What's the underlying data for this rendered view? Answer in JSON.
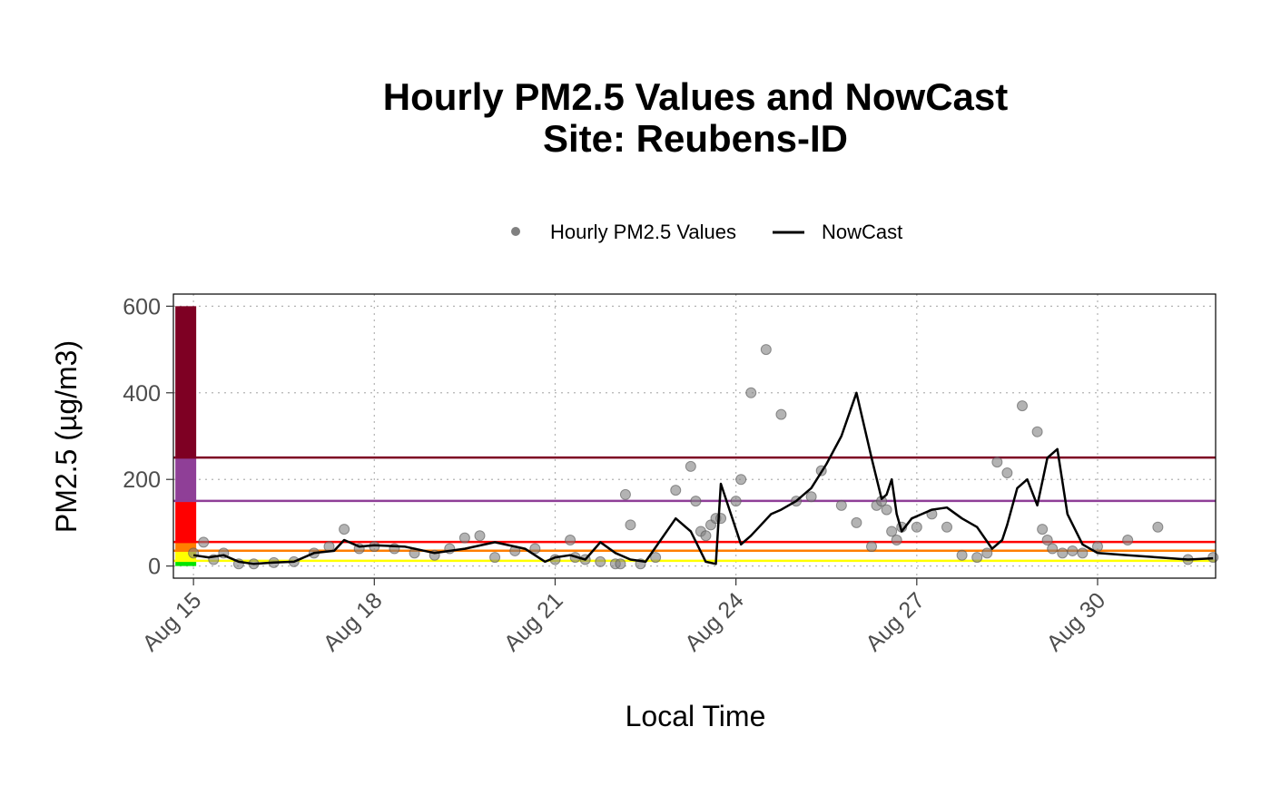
{
  "chart_data": {
    "type": "scatter",
    "title": "Hourly PM2.5 Values and NowCast",
    "subtitle": "Site: Reubens-ID",
    "xlabel": "Local Time",
    "ylabel": "PM2.5 (µg/m3)",
    "x_type": "date",
    "year": 2020,
    "xlim": [
      "2020-08-14T16:00",
      "2020-08-31T23:00"
    ],
    "ylim": [
      -28,
      628
    ],
    "x_tick_labels": [
      "Aug 15",
      "Aug 18",
      "Aug 21",
      "Aug 24",
      "Aug 27",
      "Aug 30"
    ],
    "x_tick_dates": [
      "2020-08-15",
      "2020-08-18",
      "2020-08-21",
      "2020-08-24",
      "2020-08-27",
      "2020-08-30"
    ],
    "y_ticks": [
      0,
      200,
      400,
      600
    ],
    "y_tick_labels": [
      "0",
      "200",
      "400",
      "600"
    ],
    "grid": true,
    "grid_style": "dotted",
    "legend_position": "top",
    "legend": [
      {
        "label": "Hourly PM2.5 Values",
        "marker": "point",
        "color": "#808080"
      },
      {
        "label": "NowCast",
        "marker": "line",
        "color": "#000000"
      }
    ],
    "aqi_category_colors": [
      "#00e400",
      "#ffff00",
      "#ff7e00",
      "#ff0000",
      "#8f3f97",
      "#7e0023"
    ],
    "aqi_bar_breaks": [
      0,
      12,
      35.5,
      55.5,
      150.5,
      250.5,
      600
    ],
    "aqi_threshold_lines": [
      {
        "value": 12,
        "color": "#ffff00"
      },
      {
        "value": 35.5,
        "color": "#ff7e00"
      },
      {
        "value": 55.5,
        "color": "#ff0000"
      },
      {
        "value": 150.5,
        "color": "#8f3f97"
      },
      {
        "value": 250.5,
        "color": "#7e0023"
      }
    ],
    "series": [
      {
        "name": "Hourly PM2.5 Values",
        "kind": "points",
        "color": "#808080",
        "x": [
          "2020-08-15T00:00",
          "2020-08-15T04:00",
          "2020-08-15T08:00",
          "2020-08-15T12:00",
          "2020-08-15T18:00",
          "2020-08-16T00:00",
          "2020-08-16T08:00",
          "2020-08-16T16:00",
          "2020-08-17T00:00",
          "2020-08-17T06:00",
          "2020-08-17T12:00",
          "2020-08-17T18:00",
          "2020-08-18T00:00",
          "2020-08-18T08:00",
          "2020-08-18T16:00",
          "2020-08-19T00:00",
          "2020-08-19T06:00",
          "2020-08-19T12:00",
          "2020-08-19T18:00",
          "2020-08-20T00:00",
          "2020-08-20T08:00",
          "2020-08-20T16:00",
          "2020-08-21T00:00",
          "2020-08-21T06:00",
          "2020-08-21T08:00",
          "2020-08-21T12:00",
          "2020-08-21T18:00",
          "2020-08-22T00:00",
          "2020-08-22T02:00",
          "2020-08-22T04:00",
          "2020-08-22T06:00",
          "2020-08-22T10:00",
          "2020-08-22T16:00",
          "2020-08-23T00:00",
          "2020-08-23T06:00",
          "2020-08-23T08:00",
          "2020-08-23T10:00",
          "2020-08-23T12:00",
          "2020-08-23T14:00",
          "2020-08-23T16:00",
          "2020-08-23T18:00",
          "2020-08-24T00:00",
          "2020-08-24T02:00",
          "2020-08-24T06:00",
          "2020-08-24T12:00",
          "2020-08-24T18:00",
          "2020-08-25T00:00",
          "2020-08-25T06:00",
          "2020-08-25T10:00",
          "2020-08-25T18:00",
          "2020-08-26T00:00",
          "2020-08-26T06:00",
          "2020-08-26T08:00",
          "2020-08-26T10:00",
          "2020-08-26T12:00",
          "2020-08-26T14:00",
          "2020-08-26T16:00",
          "2020-08-26T18:00",
          "2020-08-27T00:00",
          "2020-08-27T06:00",
          "2020-08-27T12:00",
          "2020-08-27T18:00",
          "2020-08-28T00:00",
          "2020-08-28T04:00",
          "2020-08-28T08:00",
          "2020-08-28T12:00",
          "2020-08-28T18:00",
          "2020-08-29T00:00",
          "2020-08-29T02:00",
          "2020-08-29T04:00",
          "2020-08-29T06:00",
          "2020-08-29T10:00",
          "2020-08-29T14:00",
          "2020-08-29T18:00",
          "2020-08-30T00:00",
          "2020-08-30T12:00",
          "2020-08-31T00:00",
          "2020-08-31T12:00",
          "2020-08-31T22:00"
        ],
        "y": [
          30,
          55,
          15,
          30,
          5,
          5,
          8,
          10,
          30,
          45,
          85,
          40,
          45,
          40,
          30,
          25,
          40,
          65,
          70,
          20,
          35,
          40,
          15,
          60,
          20,
          15,
          10,
          5,
          5,
          165,
          95,
          5,
          20,
          175,
          230,
          150,
          80,
          70,
          95,
          110,
          110,
          150,
          200,
          400,
          500,
          350,
          150,
          160,
          220,
          140,
          100,
          45,
          140,
          150,
          130,
          80,
          60,
          90,
          90,
          120,
          90,
          25,
          20,
          30,
          240,
          215,
          370,
          310,
          85,
          60,
          40,
          30,
          35,
          30,
          45,
          60,
          90,
          15,
          20
        ]
      },
      {
        "name": "NowCast",
        "kind": "line",
        "color": "#000000",
        "x": [
          "2020-08-15T00:00",
          "2020-08-15T06:00",
          "2020-08-15T12:00",
          "2020-08-15T18:00",
          "2020-08-16T00:00",
          "2020-08-16T08:00",
          "2020-08-16T16:00",
          "2020-08-17T00:00",
          "2020-08-17T08:00",
          "2020-08-17T12:00",
          "2020-08-17T18:00",
          "2020-08-18T00:00",
          "2020-08-18T12:00",
          "2020-08-19T00:00",
          "2020-08-19T12:00",
          "2020-08-20T00:00",
          "2020-08-20T12:00",
          "2020-08-20T20:00",
          "2020-08-21T00:00",
          "2020-08-21T06:00",
          "2020-08-21T12:00",
          "2020-08-21T18:00",
          "2020-08-22T00:00",
          "2020-08-22T06:00",
          "2020-08-22T12:00",
          "2020-08-23T00:00",
          "2020-08-23T06:00",
          "2020-08-23T12:00",
          "2020-08-23T16:00",
          "2020-08-23T18:00",
          "2020-08-23T22:00",
          "2020-08-24T02:00",
          "2020-08-24T06:00",
          "2020-08-24T10:00",
          "2020-08-24T14:00",
          "2020-08-24T18:00",
          "2020-08-25T00:00",
          "2020-08-25T06:00",
          "2020-08-25T12:00",
          "2020-08-25T18:00",
          "2020-08-26T00:00",
          "2020-08-26T06:00",
          "2020-08-26T10:00",
          "2020-08-26T12:00",
          "2020-08-26T14:00",
          "2020-08-26T16:00",
          "2020-08-26T18:00",
          "2020-08-26T22:00",
          "2020-08-27T06:00",
          "2020-08-27T12:00",
          "2020-08-27T18:00",
          "2020-08-28T00:00",
          "2020-08-28T06:00",
          "2020-08-28T10:00",
          "2020-08-28T12:00",
          "2020-08-28T16:00",
          "2020-08-28T20:00",
          "2020-08-29T00:00",
          "2020-08-29T04:00",
          "2020-08-29T08:00",
          "2020-08-29T12:00",
          "2020-08-29T18:00",
          "2020-08-30T00:00",
          "2020-08-30T12:00",
          "2020-08-31T00:00",
          "2020-08-31T12:00",
          "2020-08-31T22:00"
        ],
        "y": [
          25,
          20,
          25,
          10,
          5,
          8,
          10,
          30,
          35,
          60,
          45,
          48,
          45,
          30,
          40,
          55,
          40,
          10,
          20,
          25,
          15,
          55,
          30,
          15,
          10,
          110,
          80,
          10,
          5,
          190,
          120,
          50,
          70,
          95,
          120,
          130,
          150,
          180,
          235,
          300,
          400,
          250,
          155,
          165,
          200,
          120,
          80,
          110,
          130,
          135,
          110,
          90,
          40,
          60,
          95,
          180,
          200,
          140,
          250,
          270,
          120,
          50,
          30,
          25,
          20,
          15,
          18
        ]
      }
    ]
  }
}
